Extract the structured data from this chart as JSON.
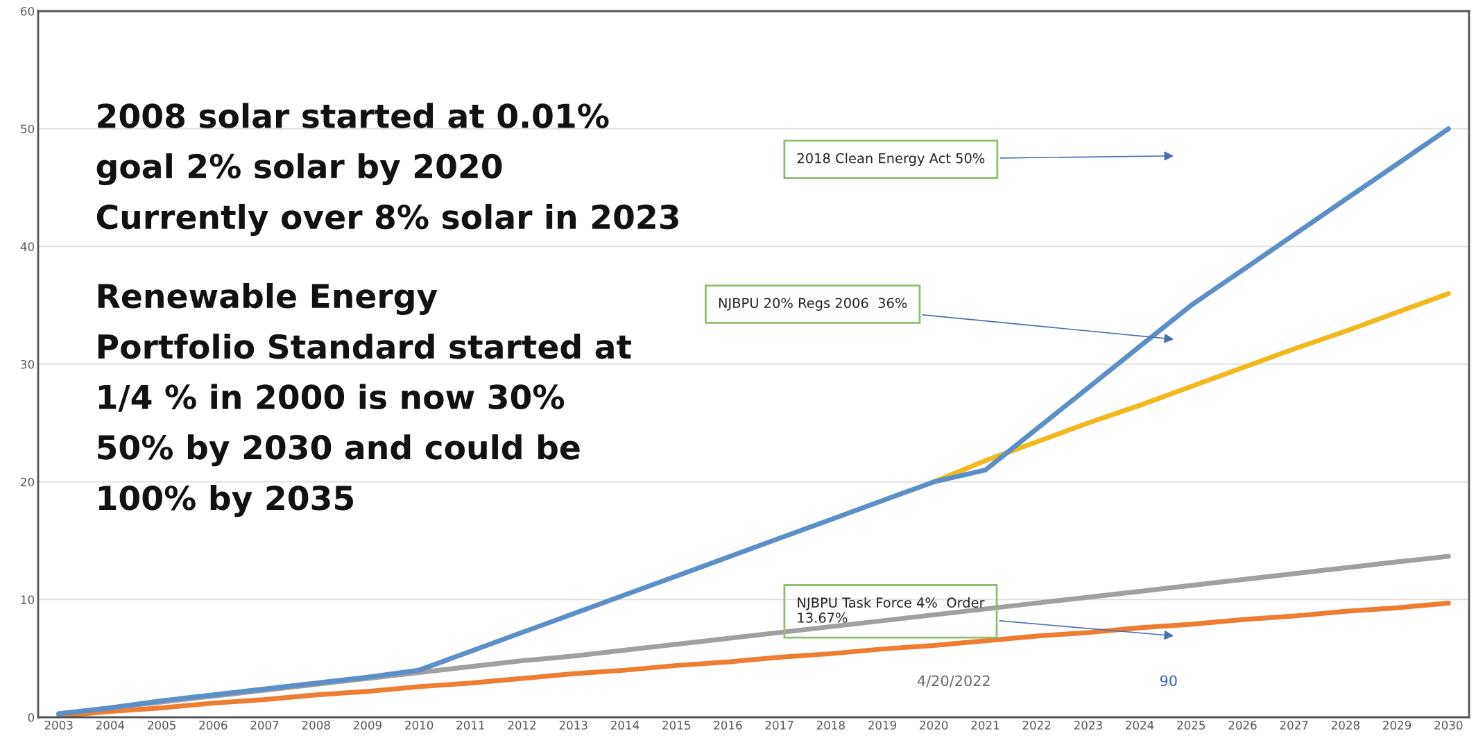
{
  "chart_data": {
    "type": "line",
    "categories": [
      "2003",
      "2004",
      "2005",
      "2006",
      "2007",
      "2008",
      "2009",
      "2010",
      "2011",
      "2012",
      "2013",
      "2014",
      "2015",
      "2016",
      "2017",
      "2018",
      "2019",
      "2020",
      "2021",
      "2022",
      "2023",
      "2024",
      "2025",
      "2026",
      "2027",
      "2028",
      "2029",
      "2030"
    ],
    "series": [
      {
        "color": "#ed7d31",
        "values": [
          0.1,
          0.5,
          0.8,
          1.2,
          1.5,
          1.9,
          2.2,
          2.6,
          2.9,
          3.3,
          3.7,
          4.0,
          4.4,
          4.7,
          5.1,
          5.4,
          5.8,
          6.1,
          6.5,
          6.9,
          7.2,
          7.6,
          7.9,
          8.3,
          8.6,
          9.0,
          9.3,
          9.7
        ]
      },
      {
        "color": "#a0a0a0",
        "values": [
          0.3,
          0.8,
          1.3,
          1.8,
          2.3,
          2.8,
          3.3,
          3.8,
          4.3,
          4.8,
          5.2,
          5.7,
          6.2,
          6.7,
          7.2,
          7.7,
          8.2,
          8.7,
          9.2,
          9.7,
          10.2,
          10.7,
          11.2,
          11.7,
          12.2,
          12.7,
          13.2,
          13.67
        ]
      },
      {
        "color": "#f2b81c",
        "values": [
          null,
          null,
          null,
          null,
          null,
          null,
          null,
          null,
          null,
          null,
          null,
          null,
          null,
          null,
          null,
          null,
          null,
          20,
          21.8,
          23.4,
          25,
          26.5,
          28.1,
          29.7,
          31.3,
          32.8,
          34.4,
          36
        ]
      },
      {
        "color": "#5b8fc7",
        "values": [
          0.3,
          0.8,
          1.4,
          1.9,
          2.4,
          2.9,
          3.4,
          4.0,
          5.6,
          7.2,
          8.8,
          10.4,
          12.0,
          13.6,
          15.2,
          16.8,
          18.4,
          20,
          21,
          24.5,
          28,
          31.5,
          35,
          38,
          41,
          44,
          47,
          50
        ]
      }
    ],
    "ylim": [
      0,
      60
    ],
    "yticks": [
      0,
      10,
      20,
      30,
      40,
      50,
      60
    ],
    "grid": "y",
    "marker": "none",
    "line_style": "solid",
    "annotations": [
      "2008 solar started at 0.01%\ngoal 2% solar by 2020\nCurrently over 8% solar in 2023",
      "Renewable Energy\nPortfolio Standard started at\n1/4 % in 2000 is now 30%\n50% by 2030 and could be\n100% by 2035",
      "2018 Clean Energy Act 50%",
      "NJBPU 20% Regs 2006  36%",
      "NJBPU Task Force 4%  Order\n13.67%",
      "4/20/2022",
      "90"
    ]
  }
}
